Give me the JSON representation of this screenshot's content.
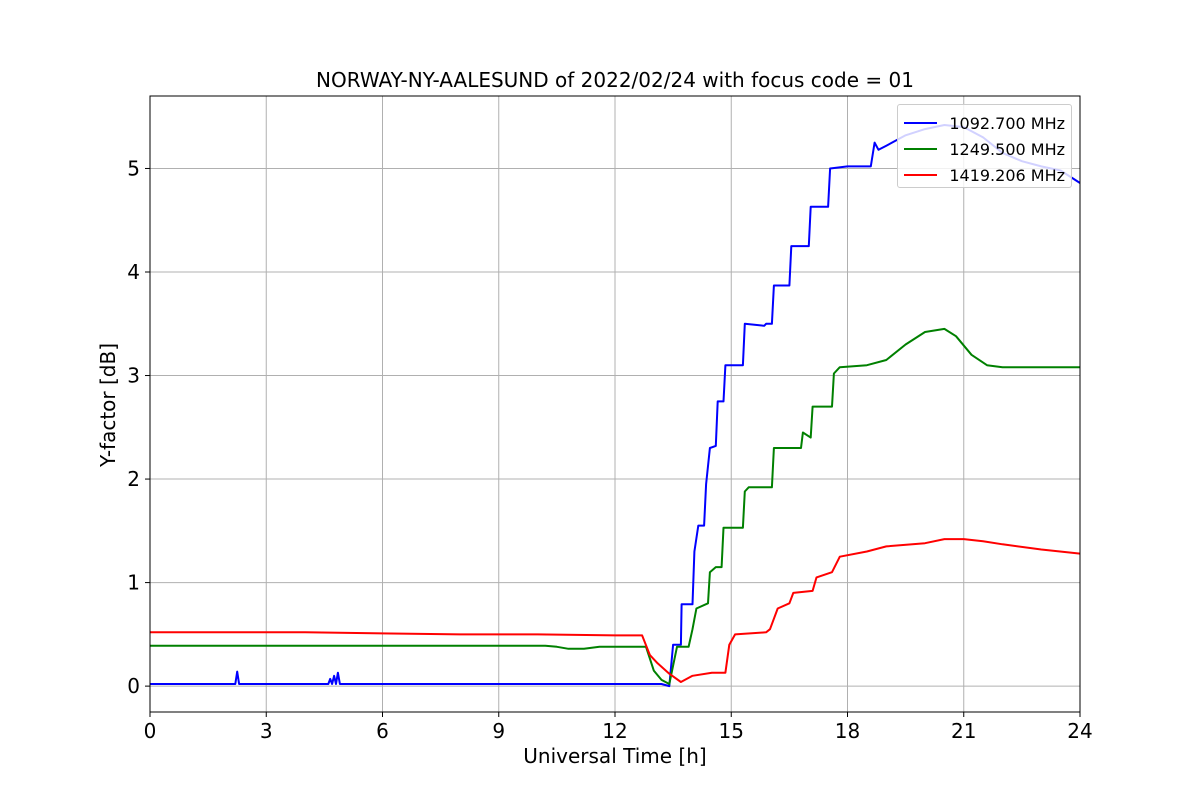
{
  "chart_data": {
    "type": "line",
    "title": "NORWAY-NY-AALESUND of 2022/02/24 with focus code = 01",
    "xlabel": "Universal Time [h]",
    "ylabel": "Y-factor [dB]",
    "xlim": [
      0,
      24
    ],
    "ylim": [
      -0.25,
      5.7
    ],
    "xticks": [
      0,
      3,
      6,
      9,
      12,
      15,
      18,
      21,
      24
    ],
    "yticks": [
      0,
      1,
      2,
      3,
      4,
      5
    ],
    "grid": true,
    "legend_position": "top-right",
    "series": [
      {
        "name": "1092.700 MHz",
        "color": "#0000ff",
        "points": [
          [
            0,
            0.02
          ],
          [
            2.2,
            0.02
          ],
          [
            2.25,
            0.14
          ],
          [
            2.3,
            0.02
          ],
          [
            4.6,
            0.02
          ],
          [
            4.65,
            0.07
          ],
          [
            4.7,
            0.02
          ],
          [
            4.75,
            0.1
          ],
          [
            4.8,
            0.02
          ],
          [
            4.85,
            0.13
          ],
          [
            4.9,
            0.02
          ],
          [
            13.0,
            0.02
          ],
          [
            13.2,
            0.02
          ],
          [
            13.4,
            0.0
          ],
          [
            13.5,
            0.4
          ],
          [
            13.7,
            0.4
          ],
          [
            13.72,
            0.79
          ],
          [
            14.0,
            0.79
          ],
          [
            14.05,
            1.3
          ],
          [
            14.15,
            1.55
          ],
          [
            14.3,
            1.55
          ],
          [
            14.35,
            1.95
          ],
          [
            14.45,
            2.3
          ],
          [
            14.6,
            2.32
          ],
          [
            14.65,
            2.75
          ],
          [
            14.8,
            2.75
          ],
          [
            14.85,
            3.1
          ],
          [
            15.3,
            3.1
          ],
          [
            15.35,
            3.5
          ],
          [
            15.85,
            3.48
          ],
          [
            15.9,
            3.5
          ],
          [
            16.05,
            3.5
          ],
          [
            16.1,
            3.87
          ],
          [
            16.5,
            3.87
          ],
          [
            16.55,
            4.25
          ],
          [
            17.0,
            4.25
          ],
          [
            17.05,
            4.63
          ],
          [
            17.5,
            4.63
          ],
          [
            17.55,
            5.0
          ],
          [
            18.0,
            5.02
          ],
          [
            18.6,
            5.02
          ],
          [
            18.7,
            5.25
          ],
          [
            18.8,
            5.18
          ],
          [
            19.0,
            5.22
          ],
          [
            19.5,
            5.32
          ],
          [
            20.0,
            5.38
          ],
          [
            20.5,
            5.42
          ],
          [
            21.0,
            5.4
          ],
          [
            21.5,
            5.3
          ],
          [
            22.0,
            5.15
          ],
          [
            22.5,
            5.07
          ],
          [
            23.0,
            5.02
          ],
          [
            23.5,
            4.98
          ],
          [
            24.0,
            4.86
          ]
        ]
      },
      {
        "name": "1249.500 MHz",
        "color": "#008000",
        "points": [
          [
            0,
            0.39
          ],
          [
            10.2,
            0.39
          ],
          [
            10.5,
            0.38
          ],
          [
            10.8,
            0.36
          ],
          [
            11.2,
            0.36
          ],
          [
            11.6,
            0.38
          ],
          [
            12.0,
            0.38
          ],
          [
            12.8,
            0.38
          ],
          [
            13.0,
            0.15
          ],
          [
            13.2,
            0.06
          ],
          [
            13.4,
            0.02
          ],
          [
            13.6,
            0.38
          ],
          [
            13.9,
            0.38
          ],
          [
            14.0,
            0.55
          ],
          [
            14.1,
            0.75
          ],
          [
            14.4,
            0.8
          ],
          [
            14.45,
            1.1
          ],
          [
            14.6,
            1.15
          ],
          [
            14.75,
            1.15
          ],
          [
            14.8,
            1.53
          ],
          [
            15.3,
            1.53
          ],
          [
            15.35,
            1.88
          ],
          [
            15.45,
            1.92
          ],
          [
            16.05,
            1.92
          ],
          [
            16.1,
            2.3
          ],
          [
            16.8,
            2.3
          ],
          [
            16.85,
            2.45
          ],
          [
            17.05,
            2.4
          ],
          [
            17.1,
            2.7
          ],
          [
            17.6,
            2.7
          ],
          [
            17.65,
            3.02
          ],
          [
            17.8,
            3.08
          ],
          [
            18.5,
            3.1
          ],
          [
            19.0,
            3.15
          ],
          [
            19.5,
            3.3
          ],
          [
            20.0,
            3.42
          ],
          [
            20.5,
            3.45
          ],
          [
            20.8,
            3.38
          ],
          [
            21.2,
            3.2
          ],
          [
            21.6,
            3.1
          ],
          [
            22.0,
            3.08
          ],
          [
            24.0,
            3.08
          ]
        ]
      },
      {
        "name": "1419.206 MHz",
        "color": "#ff0000",
        "points": [
          [
            0,
            0.52
          ],
          [
            4.0,
            0.52
          ],
          [
            8.0,
            0.5
          ],
          [
            10.0,
            0.5
          ],
          [
            12.0,
            0.49
          ],
          [
            12.7,
            0.49
          ],
          [
            12.9,
            0.3
          ],
          [
            13.1,
            0.22
          ],
          [
            13.4,
            0.12
          ],
          [
            13.7,
            0.04
          ],
          [
            14.0,
            0.1
          ],
          [
            14.5,
            0.13
          ],
          [
            14.85,
            0.13
          ],
          [
            14.95,
            0.4
          ],
          [
            15.1,
            0.5
          ],
          [
            15.9,
            0.52
          ],
          [
            16.0,
            0.55
          ],
          [
            16.2,
            0.75
          ],
          [
            16.5,
            0.8
          ],
          [
            16.6,
            0.9
          ],
          [
            17.1,
            0.92
          ],
          [
            17.2,
            1.05
          ],
          [
            17.6,
            1.1
          ],
          [
            17.8,
            1.25
          ],
          [
            18.5,
            1.3
          ],
          [
            19.0,
            1.35
          ],
          [
            20.0,
            1.38
          ],
          [
            20.5,
            1.42
          ],
          [
            21.0,
            1.42
          ],
          [
            21.5,
            1.4
          ],
          [
            22.0,
            1.37
          ],
          [
            23.0,
            1.32
          ],
          [
            24.0,
            1.28
          ]
        ]
      }
    ]
  }
}
